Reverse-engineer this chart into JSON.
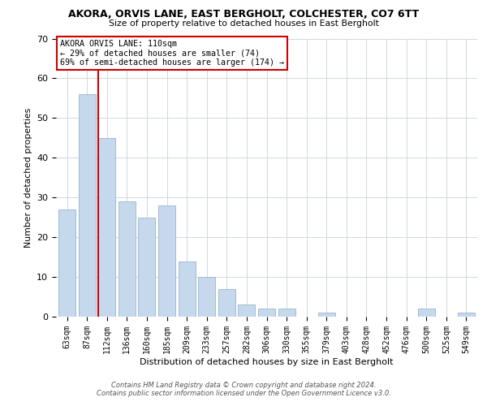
{
  "title1": "AKORA, ORVIS LANE, EAST BERGHOLT, COLCHESTER, CO7 6TT",
  "title2": "Size of property relative to detached houses in East Bergholt",
  "xlabel": "Distribution of detached houses by size in East Bergholt",
  "ylabel": "Number of detached properties",
  "categories": [
    "63sqm",
    "87sqm",
    "112sqm",
    "136sqm",
    "160sqm",
    "185sqm",
    "209sqm",
    "233sqm",
    "257sqm",
    "282sqm",
    "306sqm",
    "330sqm",
    "355sqm",
    "379sqm",
    "403sqm",
    "428sqm",
    "452sqm",
    "476sqm",
    "500sqm",
    "525sqm",
    "549sqm"
  ],
  "values": [
    27,
    56,
    45,
    29,
    25,
    28,
    14,
    10,
    7,
    3,
    2,
    2,
    0,
    1,
    0,
    0,
    0,
    0,
    2,
    0,
    1
  ],
  "bar_color": "#c5d8ec",
  "bar_edge_color": "#a0bdd4",
  "vline_color": "#cc0000",
  "annotation_line1": "AKORA ORVIS LANE: 110sqm",
  "annotation_line2": "← 29% of detached houses are smaller (74)",
  "annotation_line3": "69% of semi-detached houses are larger (174) →",
  "annotation_box_color": "#cc0000",
  "ylim": [
    0,
    70
  ],
  "yticks": [
    0,
    10,
    20,
    30,
    40,
    50,
    60,
    70
  ],
  "footnote1": "Contains HM Land Registry data © Crown copyright and database right 2024.",
  "footnote2": "Contains public sector information licensed under the Open Government Licence v3.0.",
  "bg_color": "#ffffff",
  "grid_color": "#d0d8e0"
}
